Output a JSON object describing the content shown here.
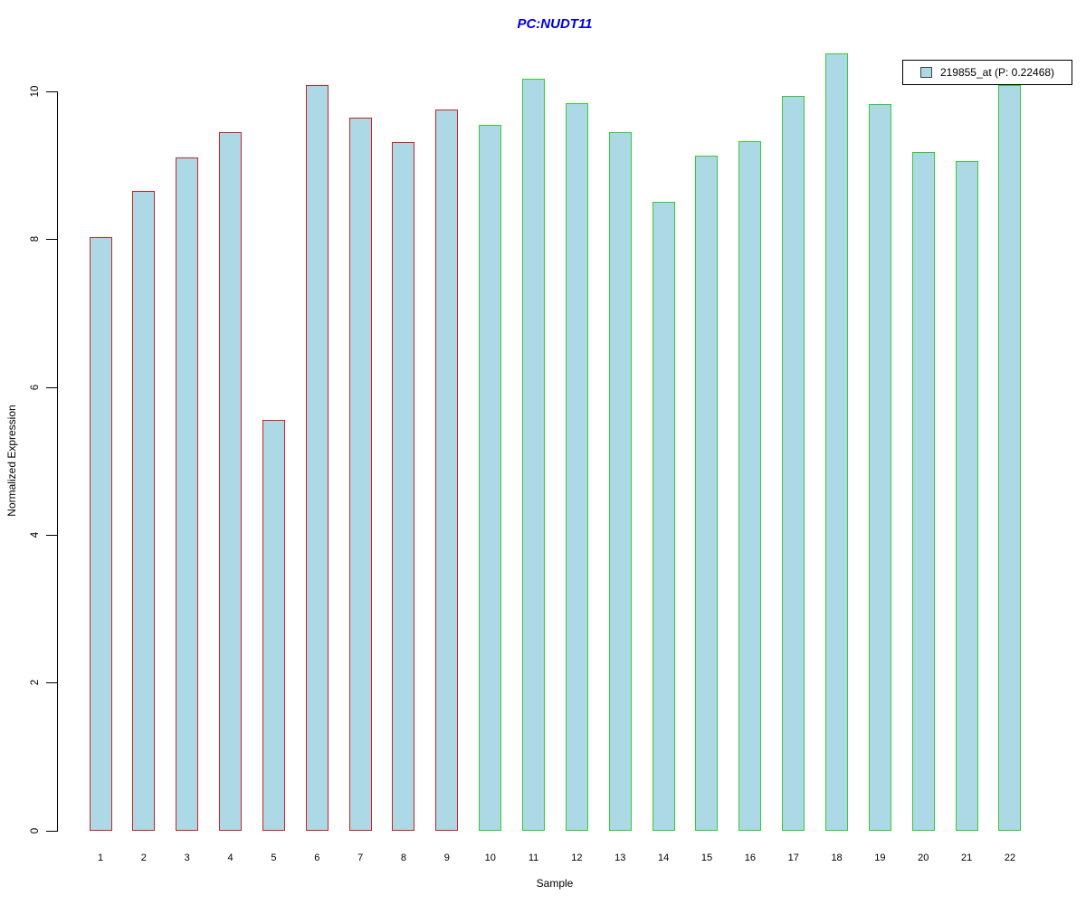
{
  "page": {
    "background": "#ffffff"
  },
  "chart_data": {
    "type": "bar",
    "title": "PC:NUDT11",
    "title_color": "#0000DD",
    "xlabel": "Sample",
    "ylabel": "Normalized Expression",
    "ylim": [
      0,
      10
    ],
    "yticks": [
      "0",
      "2",
      "4",
      "6",
      "8",
      "10"
    ],
    "grid": "off",
    "legend_position": "top-right",
    "legend": {
      "label": "219855_at (P: 0.22468)",
      "swatch_fill": "#ADD8E6"
    },
    "bar_fill": "#ADD8E6",
    "group_colors": {
      "red_outline": "#CC2222",
      "green_outline": "#33CC33"
    },
    "categories": [
      "1",
      "2",
      "3",
      "4",
      "5",
      "6",
      "7",
      "8",
      "9",
      "10",
      "11",
      "12",
      "13",
      "14",
      "15",
      "16",
      "17",
      "18",
      "19",
      "20",
      "21",
      "22"
    ],
    "bars": [
      {
        "label": "1",
        "value": 8.03,
        "group": "red_outline"
      },
      {
        "label": "2",
        "value": 8.65,
        "group": "red_outline"
      },
      {
        "label": "3",
        "value": 9.11,
        "group": "red_outline"
      },
      {
        "label": "4",
        "value": 9.45,
        "group": "red_outline"
      },
      {
        "label": "5",
        "value": 5.56,
        "group": "red_outline"
      },
      {
        "label": "6",
        "value": 10.09,
        "group": "red_outline"
      },
      {
        "label": "7",
        "value": 9.65,
        "group": "red_outline"
      },
      {
        "label": "8",
        "value": 9.31,
        "group": "red_outline"
      },
      {
        "label": "9",
        "value": 9.76,
        "group": "red_outline"
      },
      {
        "label": "10",
        "value": 9.55,
        "group": "green_outline"
      },
      {
        "label": "11",
        "value": 10.17,
        "group": "green_outline"
      },
      {
        "label": "12",
        "value": 9.84,
        "group": "green_outline"
      },
      {
        "label": "13",
        "value": 9.45,
        "group": "green_outline"
      },
      {
        "label": "14",
        "value": 8.51,
        "group": "green_outline"
      },
      {
        "label": "15",
        "value": 9.13,
        "group": "green_outline"
      },
      {
        "label": "16",
        "value": 9.33,
        "group": "green_outline"
      },
      {
        "label": "17",
        "value": 9.94,
        "group": "green_outline"
      },
      {
        "label": "18",
        "value": 10.51,
        "group": "green_outline"
      },
      {
        "label": "19",
        "value": 9.83,
        "group": "green_outline"
      },
      {
        "label": "20",
        "value": 9.18,
        "group": "green_outline"
      },
      {
        "label": "21",
        "value": 9.06,
        "group": "green_outline"
      },
      {
        "label": "22",
        "value": 10.09,
        "group": "green_outline"
      }
    ]
  }
}
